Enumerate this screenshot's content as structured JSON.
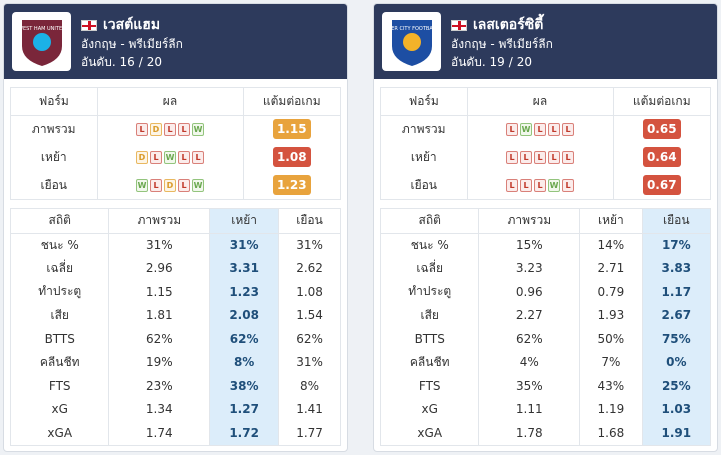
{
  "cards": [
    {
      "team": "เวสต์แฮม",
      "league": "อังกฤษ - พรีเมียร์ลีก",
      "rank_label": "อันดับ.",
      "rank": "16",
      "total": "20",
      "badge_text": "WEST HAM UNITED",
      "colors": {
        "badge_bg": "#7a263a",
        "badge_accent": "#1bb1e7"
      },
      "form_header": [
        "ฟอร์ม",
        "ผล",
        "แต้มต่อเกม"
      ],
      "form_rows": [
        {
          "label": "ภาพรวม",
          "results": [
            "L",
            "D",
            "L",
            "L",
            "W"
          ],
          "ppg": "1.15",
          "color": "#e8a33d"
        },
        {
          "label": "เหย้า",
          "results": [
            "D",
            "L",
            "W",
            "L",
            "L"
          ],
          "ppg": "1.08",
          "color": "#d4533f"
        },
        {
          "label": "เยือน",
          "results": [
            "W",
            "L",
            "D",
            "L",
            "W"
          ],
          "ppg": "1.23",
          "color": "#e8a33d"
        }
      ],
      "stats_header": [
        "สถิติ",
        "ภาพรวม",
        "เหย้า",
        "เยือน"
      ],
      "highlight_col": 1,
      "stats_rows": [
        {
          "label": "ชนะ %",
          "values": [
            "31%",
            "31%",
            "31%"
          ]
        },
        {
          "label": "เฉลี่ย",
          "values": [
            "2.96",
            "3.31",
            "2.62"
          ]
        },
        {
          "label": "ทำประตู",
          "values": [
            "1.15",
            "1.23",
            "1.08"
          ]
        },
        {
          "label": "เสีย",
          "values": [
            "1.81",
            "2.08",
            "1.54"
          ]
        },
        {
          "label": "BTTS",
          "values": [
            "62%",
            "62%",
            "62%"
          ]
        },
        {
          "label": "คลีนชีท",
          "values": [
            "19%",
            "8%",
            "31%"
          ]
        },
        {
          "label": "FTS",
          "values": [
            "23%",
            "38%",
            "8%"
          ]
        },
        {
          "label": "xG",
          "values": [
            "1.34",
            "1.27",
            "1.41"
          ]
        },
        {
          "label": "xGA",
          "values": [
            "1.74",
            "1.72",
            "1.77"
          ]
        }
      ]
    },
    {
      "team": "เลสเตอร์ซิตี้",
      "league": "อังกฤษ - พรีเมียร์ลีก",
      "rank_label": "อันดับ.",
      "rank": "19",
      "total": "20",
      "badge_text": "LEICESTER CITY FOOTBALL CLUB",
      "colors": {
        "badge_bg": "#1d4ea3",
        "badge_accent": "#f3b229"
      },
      "form_header": [
        "ฟอร์ม",
        "ผล",
        "แต้มต่อเกม"
      ],
      "form_rows": [
        {
          "label": "ภาพรวม",
          "results": [
            "L",
            "W",
            "L",
            "L",
            "L"
          ],
          "ppg": "0.65",
          "color": "#d4533f"
        },
        {
          "label": "เหย้า",
          "results": [
            "L",
            "L",
            "L",
            "L",
            "L"
          ],
          "ppg": "0.64",
          "color": "#d4533f"
        },
        {
          "label": "เยือน",
          "results": [
            "L",
            "L",
            "L",
            "W",
            "L"
          ],
          "ppg": "0.67",
          "color": "#d4533f"
        }
      ],
      "stats_header": [
        "สถิติ",
        "ภาพรวม",
        "เหย้า",
        "เยือน"
      ],
      "highlight_col": 2,
      "stats_rows": [
        {
          "label": "ชนะ %",
          "values": [
            "15%",
            "14%",
            "17%"
          ]
        },
        {
          "label": "เฉลี่ย",
          "values": [
            "3.23",
            "2.71",
            "3.83"
          ]
        },
        {
          "label": "ทำประตู",
          "values": [
            "0.96",
            "0.79",
            "1.17"
          ]
        },
        {
          "label": "เสีย",
          "values": [
            "2.27",
            "1.93",
            "2.67"
          ]
        },
        {
          "label": "BTTS",
          "values": [
            "62%",
            "50%",
            "75%"
          ]
        },
        {
          "label": "คลีนชีท",
          "values": [
            "4%",
            "7%",
            "0%"
          ]
        },
        {
          "label": "FTS",
          "values": [
            "35%",
            "43%",
            "25%"
          ]
        },
        {
          "label": "xG",
          "values": [
            "1.11",
            "1.19",
            "1.03"
          ]
        },
        {
          "label": "xGA",
          "values": [
            "1.78",
            "1.68",
            "1.91"
          ]
        }
      ]
    }
  ]
}
